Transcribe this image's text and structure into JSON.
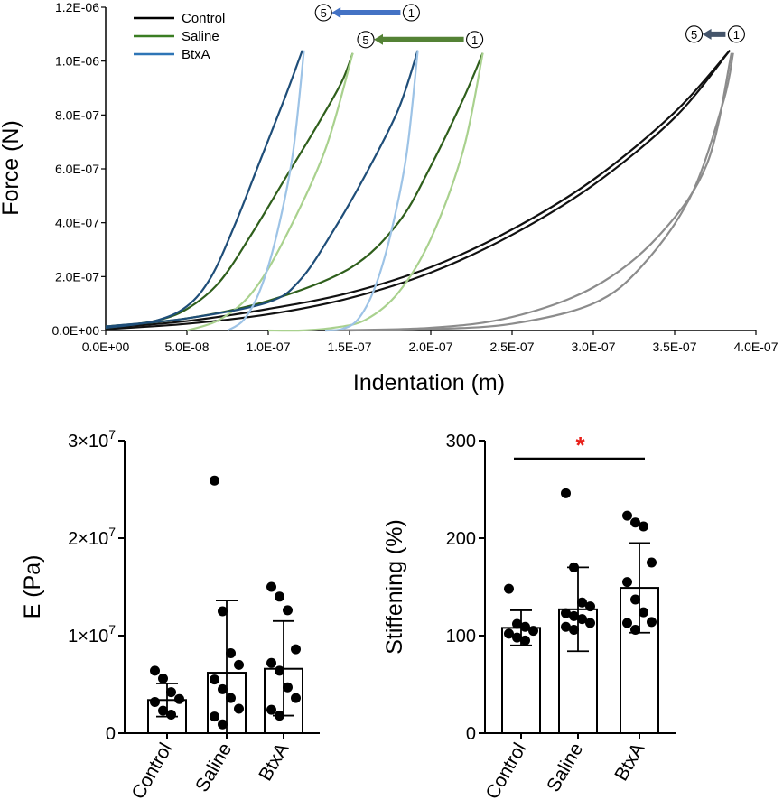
{
  "chart_data": [
    {
      "type": "line",
      "xlabel": "Indentation (m)",
      "ylabel": "Force (N)",
      "xlim": [
        0,
        4e-07
      ],
      "ylim": [
        0,
        1.2e-06
      ],
      "x_ticks": [
        {
          "value": 0,
          "label": "0.0E+00"
        },
        {
          "value": 5e-08,
          "label": "5.0E-08"
        },
        {
          "value": 1e-07,
          "label": "1.0E-07"
        },
        {
          "value": 1.5e-07,
          "label": "1.5E-07"
        },
        {
          "value": 2e-07,
          "label": "2.0E-07"
        },
        {
          "value": 2.5e-07,
          "label": "2.5E-07"
        },
        {
          "value": 3e-07,
          "label": "3.0E-07"
        },
        {
          "value": 3.5e-07,
          "label": "3.5E-07"
        },
        {
          "value": 4e-07,
          "label": "4.0E-07"
        }
      ],
      "y_ticks": [
        {
          "value": 0,
          "label": "0.0E+00"
        },
        {
          "value": 2e-07,
          "label": "2.0E-07"
        },
        {
          "value": 4e-07,
          "label": "4.0E-07"
        },
        {
          "value": 6e-07,
          "label": "6.0E-07"
        },
        {
          "value": 8e-07,
          "label": "8.0E-07"
        },
        {
          "value": 1e-06,
          "label": "1.0E-06"
        },
        {
          "value": 1.2e-06,
          "label": "1.2E-06"
        }
      ],
      "legend": {
        "position": "top-left",
        "entries": [
          {
            "name": "Control",
            "color": "#000000"
          },
          {
            "name": "Saline",
            "color": "#3a7d22"
          },
          {
            "name": "BtxA",
            "color": "#2e75b6"
          }
        ]
      },
      "series": [
        {
          "name": "Control cycle 1 loading",
          "color": "#111111",
          "x": [
            0,
            5e-08,
            1e-07,
            1.5e-07,
            2e-07,
            2.5e-07,
            3e-07,
            3.5e-07,
            3.84e-07
          ],
          "y": [
            1e-08,
            3.5e-08,
            8e-08,
            1.4e-07,
            2.35e-07,
            3.75e-07,
            5.6e-07,
            8.1e-07,
            1.04e-06
          ]
        },
        {
          "name": "Control cycle 1 unloading",
          "color": "#111111",
          "x": [
            3.84e-07,
            3.5e-07,
            3e-07,
            2.5e-07,
            2e-07,
            1.5e-07,
            1e-07,
            5e-08,
            0
          ],
          "y": [
            1.04e-06,
            7.9e-07,
            5.4e-07,
            3.55e-07,
            2.15e-07,
            1.2e-07,
            6e-08,
            2.5e-08,
            5e-09
          ]
        },
        {
          "name": "Control cycle 5 loading",
          "color": "#8c8c8c",
          "x": [
            1.35e-07,
            2e-07,
            2.5e-07,
            3e-07,
            3.4e-07,
            3.7e-07,
            3.85e-07
          ],
          "y": [
            0,
            1e-08,
            5e-08,
            1.6e-07,
            3.5e-07,
            6.2e-07,
            1.03e-06
          ]
        },
        {
          "name": "Control cycle 5 unloading",
          "color": "#8c8c8c",
          "x": [
            3.86e-07,
            3.8e-07,
            3.6e-07,
            3.3e-07,
            3e-07,
            2.5e-07,
            2e-07,
            1.5e-07
          ],
          "y": [
            1.03e-06,
            8.5e-07,
            5e-07,
            2.4e-07,
            1e-07,
            2.5e-08,
            5e-09,
            0
          ]
        },
        {
          "name": "Saline cycle 1 loading",
          "color": "#2f5f1c",
          "x": [
            0,
            5e-08,
            1e-07,
            1.5e-07,
            1.8e-07,
            2e-07,
            2.2e-07,
            2.32e-07
          ],
          "y": [
            1.5e-08,
            4.5e-08,
            1.1e-07,
            2.3e-07,
            4e-07,
            6.1e-07,
            8.6e-07,
            1.03e-06
          ]
        },
        {
          "name": "Saline cycle 1 unloading",
          "color": "#a9d18e",
          "x": [
            2.32e-07,
            2.2e-07,
            2e-07,
            1.8e-07,
            1.6e-07,
            1.4e-07,
            1.2e-07,
            1e-07
          ],
          "y": [
            1.03e-06,
            6.7e-07,
            3.4e-07,
            1.4e-07,
            4e-08,
            1e-08,
            0,
            0
          ]
        },
        {
          "name": "Saline cycle 5 loading",
          "color": "#2f5f1c",
          "x": [
            0,
            3e-08,
            5e-08,
            7e-08,
            9e-08,
            1.1e-07,
            1.3e-07,
            1.45e-07,
            1.52e-07
          ],
          "y": [
            1e-08,
            3.5e-08,
            8e-08,
            1.8e-07,
            3.6e-07,
            5.6e-07,
            7.6e-07,
            9.2e-07,
            1.03e-06
          ]
        },
        {
          "name": "Saline cycle 5 unloading",
          "color": "#a9d18e",
          "x": [
            1.52e-07,
            1.35e-07,
            1.1e-07,
            9e-08,
            7e-08,
            5e-08
          ],
          "y": [
            1.03e-06,
            6.7e-07,
            3.4e-07,
            1.4e-07,
            4e-08,
            0
          ]
        },
        {
          "name": "BtxA cycle 1 loading",
          "color": "#1f4e79",
          "x": [
            0,
            5e-08,
            1e-07,
            1.2e-07,
            1.4e-07,
            1.6e-07,
            1.8e-07,
            1.92e-07
          ],
          "y": [
            1.5e-08,
            4.5e-08,
            1.05e-07,
            1.9e-07,
            3.7e-07,
            5.8e-07,
            8.2e-07,
            1.04e-06
          ]
        },
        {
          "name": "BtxA cycle 1 unloading",
          "color": "#9dc3e6",
          "x": [
            1.92e-07,
            1.85e-07,
            1.75e-07,
            1.65e-07,
            1.55e-07,
            1.45e-07,
            1.35e-07
          ],
          "y": [
            1.04e-06,
            6.5e-07,
            3.5e-07,
            1.5e-07,
            4e-08,
            5e-09,
            0
          ]
        },
        {
          "name": "BtxA cycle 5 loading",
          "color": "#1f4e79",
          "x": [
            0,
            3e-08,
            5e-08,
            6.5e-08,
            8e-08,
            9.5e-08,
            1.1e-07,
            1.21e-07
          ],
          "y": [
            1e-08,
            3.5e-08,
            9e-08,
            2e-07,
            4e-07,
            6.3e-07,
            8.6e-07,
            1.04e-06
          ]
        },
        {
          "name": "BtxA cycle 5 unloading",
          "color": "#9dc3e6",
          "x": [
            1.22e-07,
            1.15e-07,
            1.05e-07,
            9.5e-08,
            8.5e-08,
            7.5e-08
          ],
          "y": [
            1.04e-06,
            6.5e-07,
            3.5e-07,
            1.5e-07,
            4e-08,
            0
          ]
        }
      ],
      "annotations": [
        {
          "label_start": "5",
          "label_end": "1",
          "arrow_color": "#4472c4",
          "x_start": 1.34e-07,
          "x_end": 1.88e-07,
          "y": 1.18e-06
        },
        {
          "label_start": "5",
          "label_end": "1",
          "arrow_color": "#548235",
          "x_start": 1.6e-07,
          "x_end": 2.27e-07,
          "y": 1.08e-06
        },
        {
          "label_start": "5",
          "label_end": "1",
          "arrow_color": "#44546a",
          "x_start": 3.62e-07,
          "x_end": 3.88e-07,
          "y": 1.1e-06
        }
      ]
    },
    {
      "type": "bar",
      "ylabel": "E (Pa)",
      "categories": [
        "Control",
        "Saline",
        "BtxA"
      ],
      "ylim": [
        0,
        30000000
      ],
      "y_ticks": [
        {
          "value": 0,
          "label": "0"
        },
        {
          "value": 10000000,
          "label": "1×10⁷"
        },
        {
          "value": 20000000,
          "label": "2×10⁷"
        },
        {
          "value": 30000000,
          "label": "3×10⁷"
        }
      ],
      "values": [
        3400000,
        6200000,
        6600000
      ],
      "error": [
        [
          1700000,
          5100000
        ],
        [
          null,
          13600000
        ],
        [
          1800000,
          11500000
        ]
      ],
      "points": [
        [
          6400000,
          5600000,
          4200000,
          3500000,
          3200000,
          2300000,
          1900000
        ],
        [
          25900000,
          12500000,
          8200000,
          7000000,
          5500000,
          4500000,
          3600000,
          2500000,
          1700000,
          900000
        ],
        [
          15000000,
          14000000,
          12600000,
          8600000,
          7200000,
          6400000,
          4700000,
          3600000,
          2400000,
          1800000
        ]
      ]
    },
    {
      "type": "bar",
      "ylabel": "Stiffening (%)",
      "categories": [
        "Control",
        "Saline",
        "BtxA"
      ],
      "ylim": [
        0,
        300
      ],
      "y_ticks": [
        {
          "value": 0,
          "label": "0"
        },
        {
          "value": 100,
          "label": "100"
        },
        {
          "value": 200,
          "label": "200"
        },
        {
          "value": 300,
          "label": "300"
        }
      ],
      "values": [
        108,
        127,
        149
      ],
      "error": [
        [
          90,
          126
        ],
        [
          84,
          170
        ],
        [
          103,
          195
        ]
      ],
      "points": [
        [
          148,
          112,
          109,
          105,
          102,
          98,
          95
        ],
        [
          246,
          170,
          134,
          130,
          123,
          120,
          117,
          113,
          109,
          106
        ],
        [
          223,
          216,
          212,
          175,
          155,
          137,
          124,
          114,
          113,
          106
        ]
      ],
      "significance": {
        "from": "Control",
        "to": "BtxA",
        "label": "*",
        "color": "#e8201a"
      }
    }
  ]
}
